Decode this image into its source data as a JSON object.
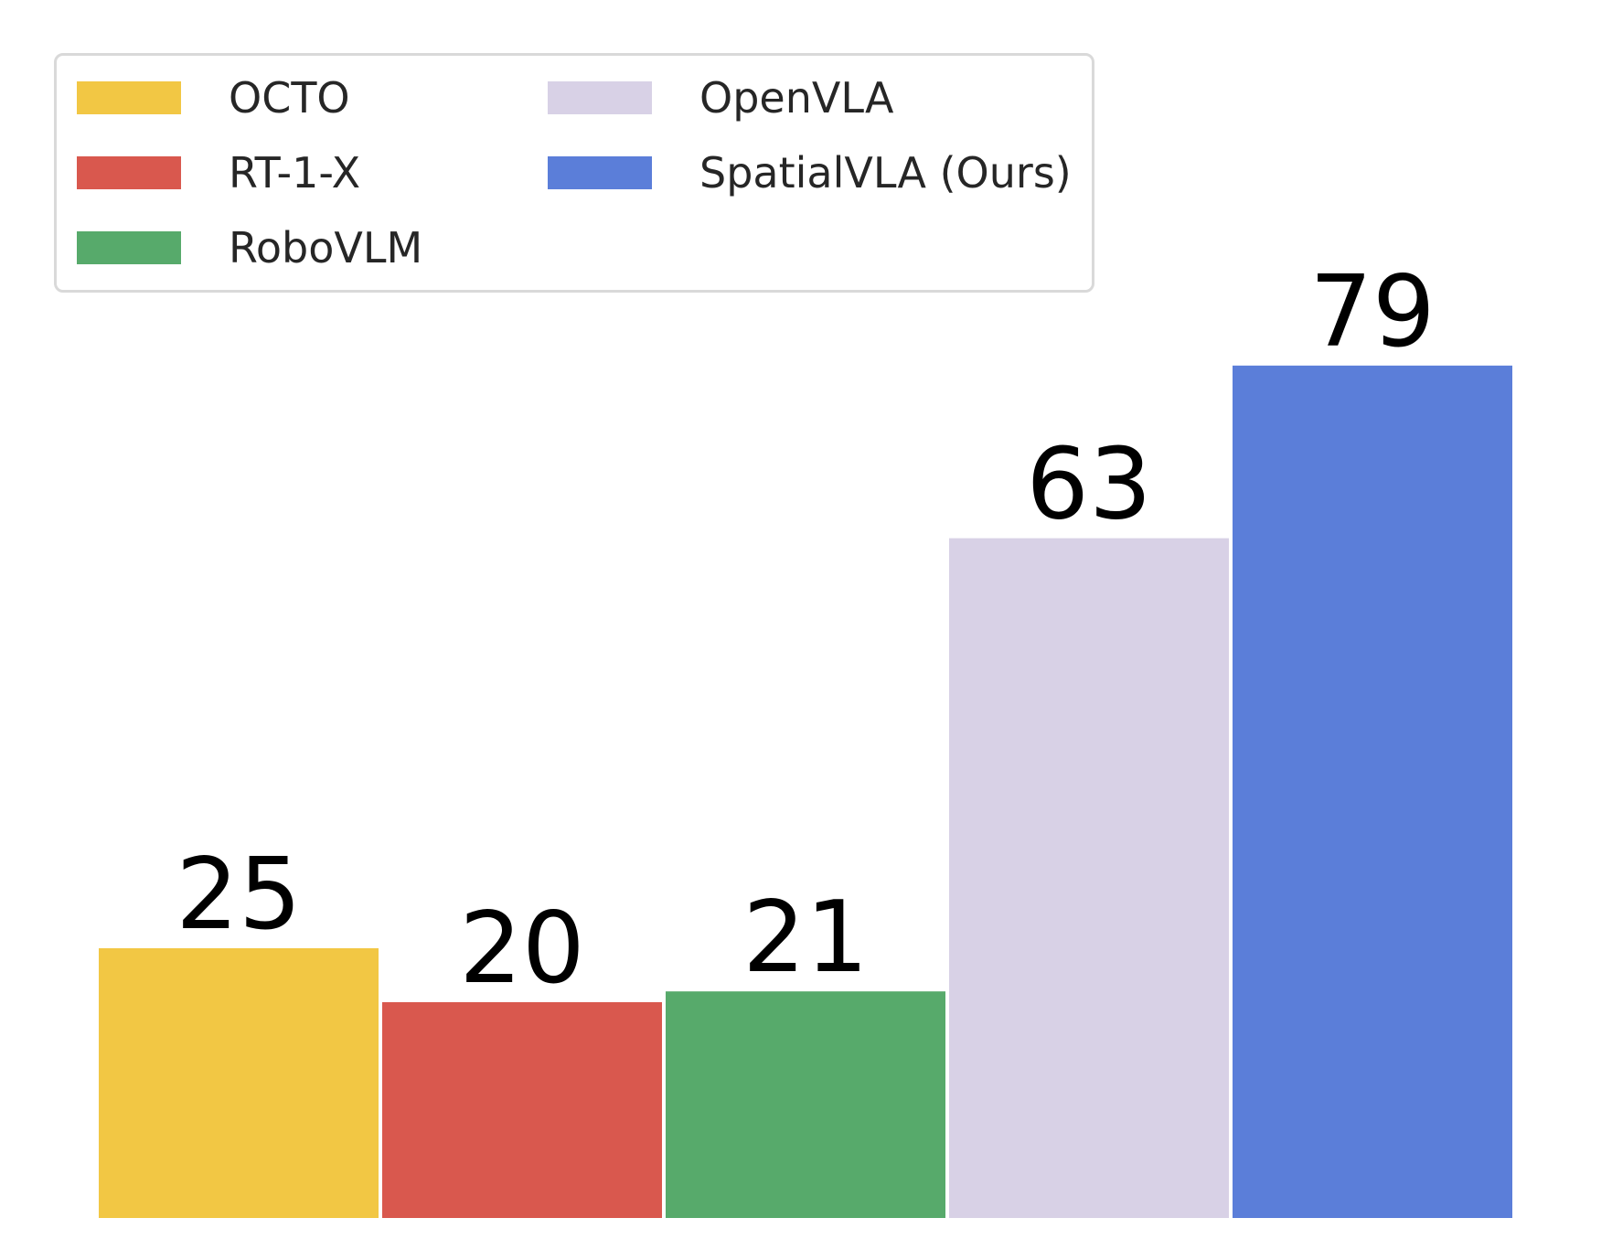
{
  "chart_data": {
    "type": "bar",
    "title": "",
    "xlabel": "",
    "ylabel": "",
    "ylim": [
      0,
      85
    ],
    "grid": false,
    "legend_placement": "top-left",
    "legend_columns": 2,
    "show_value_labels": true,
    "series": [
      {
        "name": "OCTO",
        "value": 25,
        "color": "#f2c744"
      },
      {
        "name": "RT-1-X",
        "value": 20,
        "color": "#d9584e"
      },
      {
        "name": "RoboVLM",
        "value": 21,
        "color": "#57aa6b"
      },
      {
        "name": "OpenVLA",
        "value": 63,
        "color": "#d8d1e6"
      },
      {
        "name": "SpatialVLA (Ours)",
        "value": 79,
        "color": "#5b7ed9"
      }
    ]
  }
}
